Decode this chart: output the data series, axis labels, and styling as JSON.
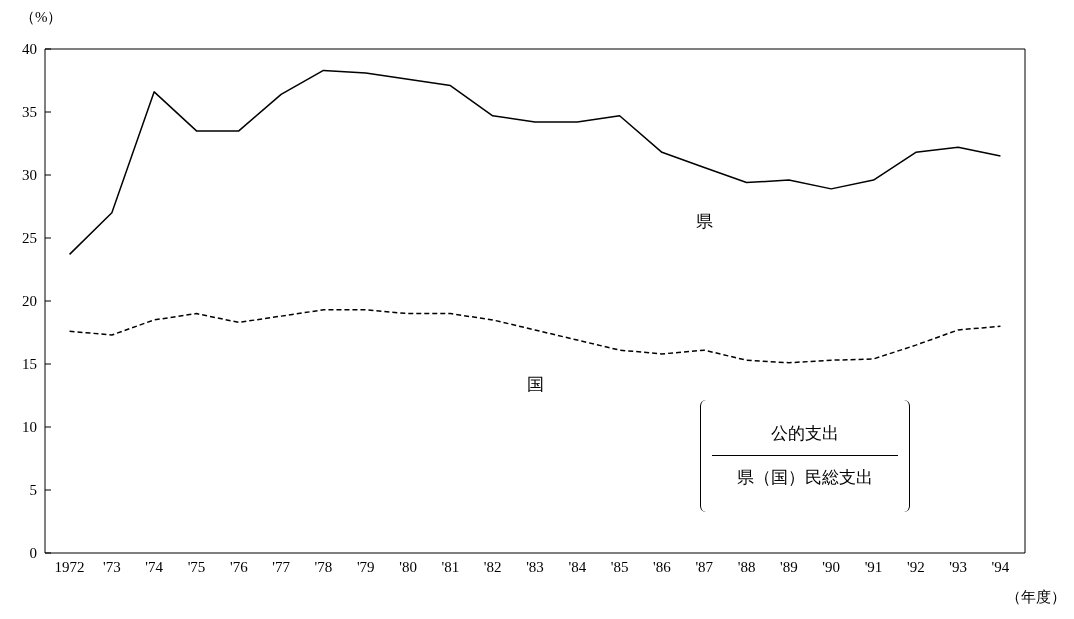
{
  "chart_data": {
    "type": "line",
    "xlabel": "（年度）",
    "ylabel": "（%）",
    "categories": [
      "1972",
      "'73",
      "'74",
      "'75",
      "'76",
      "'77",
      "'78",
      "'79",
      "'80",
      "'81",
      "'82",
      "'83",
      "'84",
      "'85",
      "'86",
      "'87",
      "'88",
      "'89",
      "'90",
      "'91",
      "'92",
      "'93",
      "'94"
    ],
    "series": [
      {
        "name": "県",
        "color": "#000000",
        "line_style": "solid",
        "values": [
          23.7,
          27.0,
          36.6,
          33.5,
          33.5,
          36.4,
          38.3,
          38.1,
          37.6,
          37.1,
          34.7,
          34.2,
          34.2,
          34.7,
          31.8,
          30.6,
          29.4,
          29.6,
          28.9,
          29.6,
          31.8,
          32.2,
          31.5
        ]
      },
      {
        "name": "国",
        "color": "#000000",
        "line_style": "dashed",
        "values": [
          17.6,
          17.3,
          18.5,
          19.0,
          18.3,
          18.8,
          19.3,
          19.3,
          19.0,
          19.0,
          18.5,
          17.7,
          16.9,
          16.1,
          15.8,
          16.1,
          15.3,
          15.1,
          15.3,
          15.4,
          16.5,
          17.7,
          18.0
        ]
      }
    ],
    "annotations": [
      "公的支出",
      "県（国）民総支出"
    ],
    "ylim": [
      0,
      40
    ],
    "yticks": [
      0,
      5,
      10,
      15,
      20,
      25,
      30,
      35,
      40
    ]
  }
}
